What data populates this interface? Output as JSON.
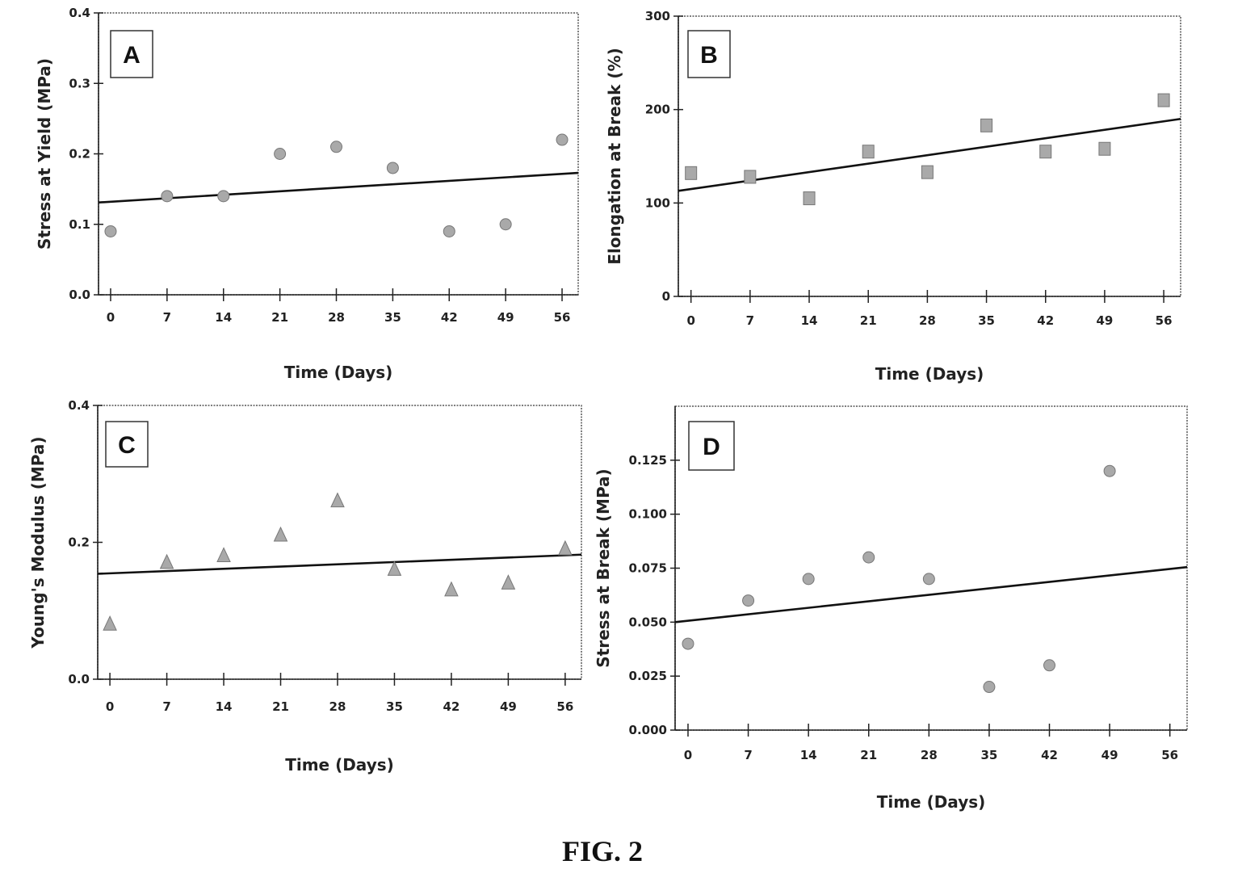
{
  "figure": {
    "caption": "FIG. 2"
  },
  "chart_data": [
    {
      "id": "A",
      "type": "scatter",
      "panel_label": "A",
      "marker": "circle",
      "xlabel": "Time (Days)",
      "ylabel": "Stress at Yield (MPa)",
      "x": [
        0,
        7,
        14,
        21,
        28,
        35,
        42,
        49,
        56
      ],
      "x_tick_labels": [
        "0",
        "7",
        "14",
        "21",
        "28",
        "35",
        "42",
        "49",
        "56"
      ],
      "y": [
        0.09,
        0.14,
        0.14,
        0.2,
        0.21,
        0.18,
        0.09,
        0.1,
        0.22
      ],
      "y_ticks": [
        0.0,
        0.1,
        0.2,
        0.3,
        0.4
      ],
      "y_tick_labels": [
        "0.0",
        "0.1",
        "0.2",
        "0.3",
        "0.4"
      ],
      "ylim": [
        0,
        0.4
      ],
      "xlim": [
        -1.5,
        58
      ],
      "trend": {
        "x0": -1.5,
        "y0": 0.131,
        "x1": 58,
        "y1": 0.173
      }
    },
    {
      "id": "B",
      "type": "scatter",
      "panel_label": "B",
      "marker": "square",
      "xlabel": "Time (Days)",
      "ylabel": "Elongation at Break (%)",
      "x": [
        0,
        7,
        14,
        21,
        28,
        35,
        42,
        49,
        56
      ],
      "x_tick_labels": [
        "0",
        "7",
        "14",
        "21",
        "28",
        "35",
        "42",
        "49",
        "56"
      ],
      "y": [
        132,
        128,
        105,
        155,
        133,
        183,
        155,
        158,
        210
      ],
      "y_ticks": [
        0,
        100,
        200,
        300
      ],
      "y_tick_labels": [
        "0",
        "100",
        "200",
        "300"
      ],
      "ylim": [
        0,
        300
      ],
      "xlim": [
        -1.5,
        58
      ],
      "trend": {
        "x0": -1.5,
        "y0": 113,
        "x1": 58,
        "y1": 190
      }
    },
    {
      "id": "C",
      "type": "scatter",
      "panel_label": "C",
      "marker": "triangle",
      "xlabel": "Time (Days)",
      "ylabel": "Young's Modulus (MPa)",
      "x": [
        0,
        7,
        14,
        21,
        28,
        35,
        42,
        49,
        56
      ],
      "x_tick_labels": [
        "0",
        "7",
        "14",
        "21",
        "28",
        "35",
        "42",
        "49",
        "56"
      ],
      "y": [
        0.08,
        0.17,
        0.18,
        0.21,
        0.26,
        0.16,
        0.13,
        0.14,
        0.19
      ],
      "y_ticks": [
        0.0,
        0.2,
        0.4
      ],
      "y_tick_labels": [
        "0.0",
        "0.2",
        "0.4"
      ],
      "ylim": [
        0,
        0.4
      ],
      "xlim": [
        -1.5,
        58
      ],
      "trend": {
        "x0": -1.5,
        "y0": 0.154,
        "x1": 58,
        "y1": 0.182
      }
    },
    {
      "id": "D",
      "type": "scatter",
      "panel_label": "D",
      "marker": "circle",
      "xlabel": "Time (Days)",
      "ylabel": "Stress at Break (MPa)",
      "x": [
        0,
        7,
        14,
        21,
        28,
        35,
        42,
        49
      ],
      "x_ticks": [
        0,
        7,
        14,
        21,
        28,
        35,
        42,
        49,
        56
      ],
      "x_tick_labels": [
        "0",
        "7",
        "14",
        "21",
        "28",
        "35",
        "42",
        "49",
        "56"
      ],
      "y": [
        0.04,
        0.06,
        0.07,
        0.08,
        0.07,
        0.02,
        0.03,
        0.12
      ],
      "y_ticks": [
        0.0,
        0.025,
        0.05,
        0.075,
        0.1,
        0.125
      ],
      "y_tick_labels": [
        "0.000",
        "0.025",
        "0.050",
        "0.075",
        "0.100",
        "0.125"
      ],
      "ylim": [
        0,
        0.15
      ],
      "xlim": [
        -1.5,
        58
      ],
      "trend": {
        "x0": -1.5,
        "y0": 0.05,
        "x1": 58,
        "y1": 0.0755
      }
    }
  ]
}
